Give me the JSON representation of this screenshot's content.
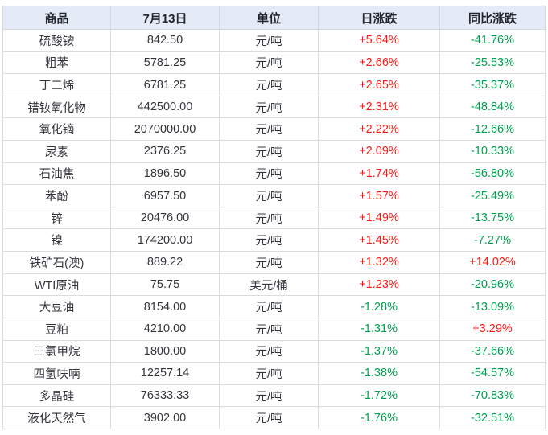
{
  "chart_data": {
    "type": "table",
    "columns": [
      "商品",
      "7月13日",
      "单位",
      "日涨跌",
      "同比涨跌"
    ],
    "rows": [
      {
        "commodity": "硫酸铵",
        "price": "842.50",
        "unit": "元/吨",
        "day_change": "+5.64%",
        "day_dir": "up",
        "yoy_change": "-41.76%",
        "yoy_dir": "down"
      },
      {
        "commodity": "粗苯",
        "price": "5781.25",
        "unit": "元/吨",
        "day_change": "+2.66%",
        "day_dir": "up",
        "yoy_change": "-25.53%",
        "yoy_dir": "down"
      },
      {
        "commodity": "丁二烯",
        "price": "6781.25",
        "unit": "元/吨",
        "day_change": "+2.65%",
        "day_dir": "up",
        "yoy_change": "-35.37%",
        "yoy_dir": "down"
      },
      {
        "commodity": "镨钕氧化物",
        "price": "442500.00",
        "unit": "元/吨",
        "day_change": "+2.31%",
        "day_dir": "up",
        "yoy_change": "-48.84%",
        "yoy_dir": "down"
      },
      {
        "commodity": "氧化镝",
        "price": "2070000.00",
        "unit": "元/吨",
        "day_change": "+2.22%",
        "day_dir": "up",
        "yoy_change": "-12.66%",
        "yoy_dir": "down"
      },
      {
        "commodity": "尿素",
        "price": "2376.25",
        "unit": "元/吨",
        "day_change": "+2.09%",
        "day_dir": "up",
        "yoy_change": "-10.33%",
        "yoy_dir": "down"
      },
      {
        "commodity": "石油焦",
        "price": "1896.50",
        "unit": "元/吨",
        "day_change": "+1.74%",
        "day_dir": "up",
        "yoy_change": "-56.80%",
        "yoy_dir": "down"
      },
      {
        "commodity": "苯酚",
        "price": "6957.50",
        "unit": "元/吨",
        "day_change": "+1.57%",
        "day_dir": "up",
        "yoy_change": "-25.49%",
        "yoy_dir": "down"
      },
      {
        "commodity": "锌",
        "price": "20476.00",
        "unit": "元/吨",
        "day_change": "+1.49%",
        "day_dir": "up",
        "yoy_change": "-13.75%",
        "yoy_dir": "down"
      },
      {
        "commodity": "镍",
        "price": "174200.00",
        "unit": "元/吨",
        "day_change": "+1.45%",
        "day_dir": "up",
        "yoy_change": "-7.27%",
        "yoy_dir": "down"
      },
      {
        "commodity": "铁矿石(澳)",
        "price": "889.22",
        "unit": "元/吨",
        "day_change": "+1.32%",
        "day_dir": "up",
        "yoy_change": "+14.02%",
        "yoy_dir": "up"
      },
      {
        "commodity": "WTI原油",
        "price": "75.75",
        "unit": "美元/桶",
        "day_change": "+1.23%",
        "day_dir": "up",
        "yoy_change": "-20.96%",
        "yoy_dir": "down"
      },
      {
        "commodity": "大豆油",
        "price": "8154.00",
        "unit": "元/吨",
        "day_change": "-1.28%",
        "day_dir": "down",
        "yoy_change": "-13.09%",
        "yoy_dir": "down"
      },
      {
        "commodity": "豆粕",
        "price": "4210.00",
        "unit": "元/吨",
        "day_change": "-1.31%",
        "day_dir": "down",
        "yoy_change": "+3.29%",
        "yoy_dir": "up"
      },
      {
        "commodity": "三氯甲烷",
        "price": "1800.00",
        "unit": "元/吨",
        "day_change": "-1.37%",
        "day_dir": "down",
        "yoy_change": "-37.66%",
        "yoy_dir": "down"
      },
      {
        "commodity": "四氢呋喃",
        "price": "12257.14",
        "unit": "元/吨",
        "day_change": "-1.38%",
        "day_dir": "down",
        "yoy_change": "-54.57%",
        "yoy_dir": "down"
      },
      {
        "commodity": "多晶硅",
        "price": "76333.33",
        "unit": "元/吨",
        "day_change": "-1.72%",
        "day_dir": "down",
        "yoy_change": "-70.83%",
        "yoy_dir": "down"
      },
      {
        "commodity": "液化天然气",
        "price": "3902.00",
        "unit": "元/吨",
        "day_change": "-1.76%",
        "day_dir": "down",
        "yoy_change": "-32.51%",
        "yoy_dir": "down"
      }
    ]
  },
  "colors": {
    "up": "#fb1a12",
    "down": "#00a050",
    "header_bg": "#e4ebf7",
    "header_text": "#21242c",
    "body_text": "#33353c",
    "outer_border": "#a9c4e6",
    "inner_border": "#d9dde2"
  }
}
